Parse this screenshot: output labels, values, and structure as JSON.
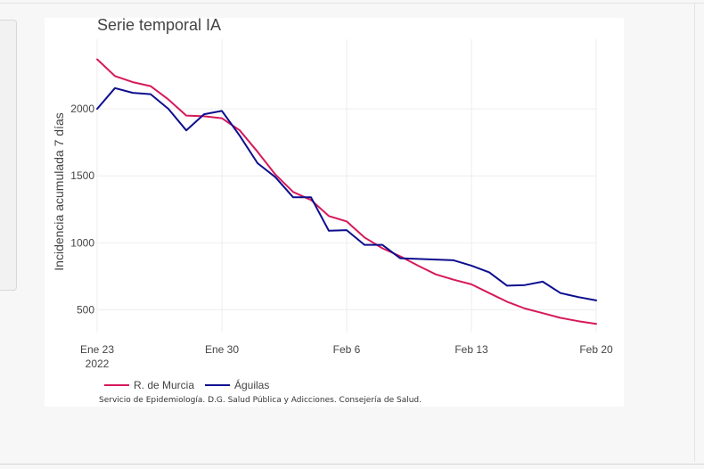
{
  "chart_data": {
    "type": "line",
    "title": "Serie temporal IA",
    "ylabel": "Incidencia acumulada 7 días",
    "xlabel": "",
    "x_start": "2022-01-23",
    "x_end": "2022-02-20",
    "ylim": [
      330,
      2520
    ],
    "grid": true,
    "legend_position": "bottom-left",
    "x_ticks": [
      {
        "date": "2022-01-23",
        "label": "Ene 23",
        "sublabel": "2022"
      },
      {
        "date": "2022-01-30",
        "label": "Ene 30",
        "sublabel": ""
      },
      {
        "date": "2022-02-06",
        "label": "Feb 6",
        "sublabel": ""
      },
      {
        "date": "2022-02-13",
        "label": "Feb 13",
        "sublabel": ""
      },
      {
        "date": "2022-02-20",
        "label": "Feb 20",
        "sublabel": ""
      }
    ],
    "y_ticks": [
      500,
      1000,
      1500,
      2000
    ],
    "x": [
      "2022-01-23",
      "2022-01-24",
      "2022-01-25",
      "2022-01-26",
      "2022-01-27",
      "2022-01-28",
      "2022-01-29",
      "2022-01-30",
      "2022-01-31",
      "2022-02-01",
      "2022-02-02",
      "2022-02-03",
      "2022-02-04",
      "2022-02-05",
      "2022-02-06",
      "2022-02-07",
      "2022-02-08",
      "2022-02-09",
      "2022-02-10",
      "2022-02-11",
      "2022-02-12",
      "2022-02-13",
      "2022-02-14",
      "2022-02-15",
      "2022-02-16",
      "2022-02-17",
      "2022-02-18",
      "2022-02-19",
      "2022-02-20"
    ],
    "series": [
      {
        "name": "R. de Murcia",
        "color": "#d6195b",
        "values": [
          2370,
          2245,
          2200,
          2170,
          2070,
          1950,
          1945,
          1930,
          1840,
          1680,
          1510,
          1380,
          1320,
          1200,
          1160,
          1040,
          960,
          900,
          830,
          765,
          725,
          690,
          625,
          560,
          510,
          475,
          440,
          415,
          395
        ]
      },
      {
        "name": "Águilas",
        "color": "#0d0d8f",
        "values": [
          2000,
          2155,
          2120,
          2110,
          2000,
          1840,
          1960,
          1985,
          1800,
          1595,
          1490,
          1340,
          1340,
          1090,
          1095,
          985,
          985,
          885,
          880,
          875,
          870,
          830,
          780,
          680,
          685,
          710,
          625,
          595,
          570
        ]
      }
    ],
    "source_note": "Servicio de Epidemiología. D.G. Salud Pública y Adicciones. Consejería de Salud."
  }
}
